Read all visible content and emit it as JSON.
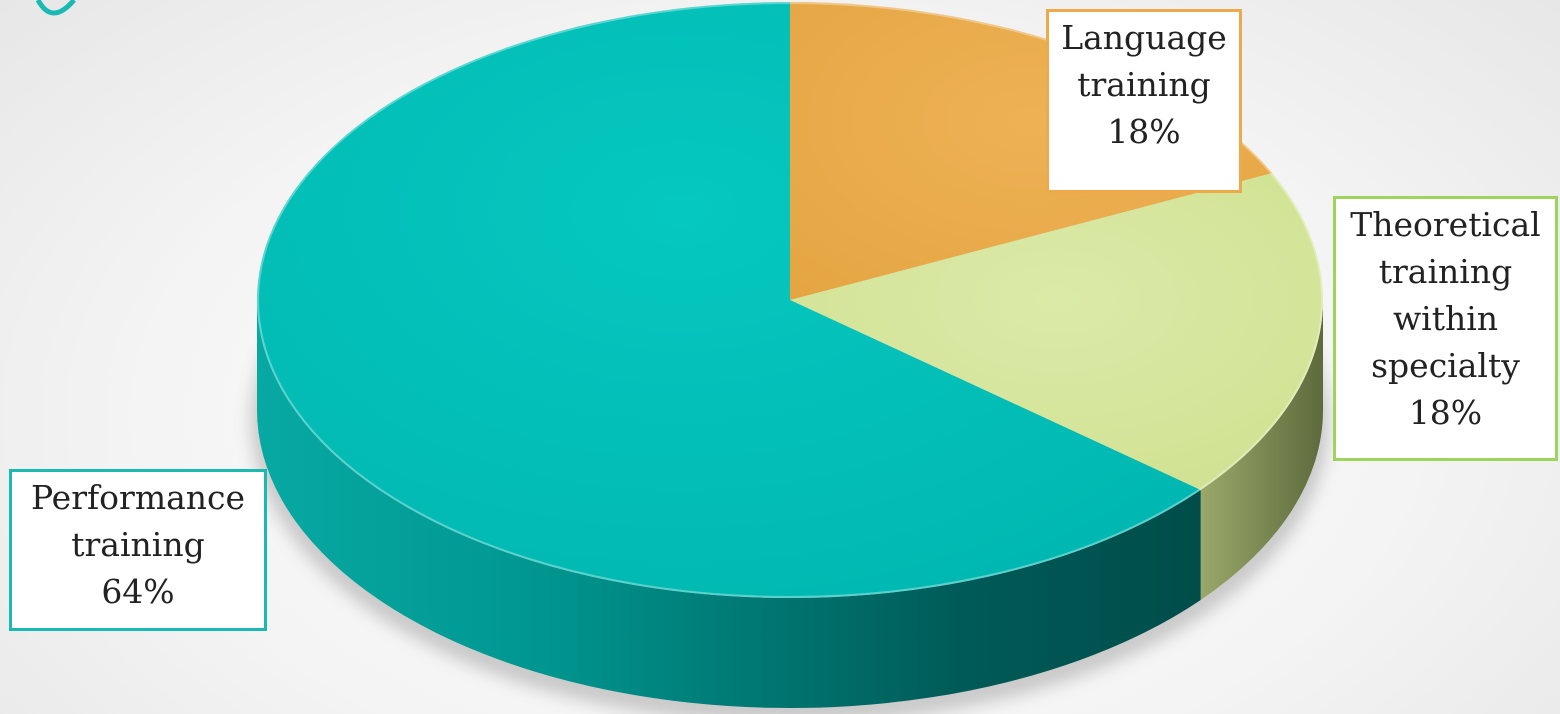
{
  "chart_data": {
    "type": "pie",
    "title": "",
    "slices": [
      {
        "label": "Language training",
        "label_lines": [
          "Language",
          "training"
        ],
        "value": 18,
        "value_label": "18%",
        "color": "#E9AB4B",
        "border_color": "#EEA94A"
      },
      {
        "label": "Theoretical training within specialty",
        "label_lines": [
          "Theoretical",
          "training",
          "within",
          "specialty"
        ],
        "value": 18,
        "value_label": "18%",
        "color": "#D3E59A",
        "border_color": "#9ED45B"
      },
      {
        "label": "Performance training",
        "label_lines": [
          "Performance",
          "training"
        ],
        "value": 64,
        "value_label": "64%",
        "color": "#00C1B9",
        "border_color": "#1AB9B3"
      }
    ],
    "start_angle_deg": 0,
    "direction": "clockwise",
    "style": "3d",
    "legend": "none"
  }
}
